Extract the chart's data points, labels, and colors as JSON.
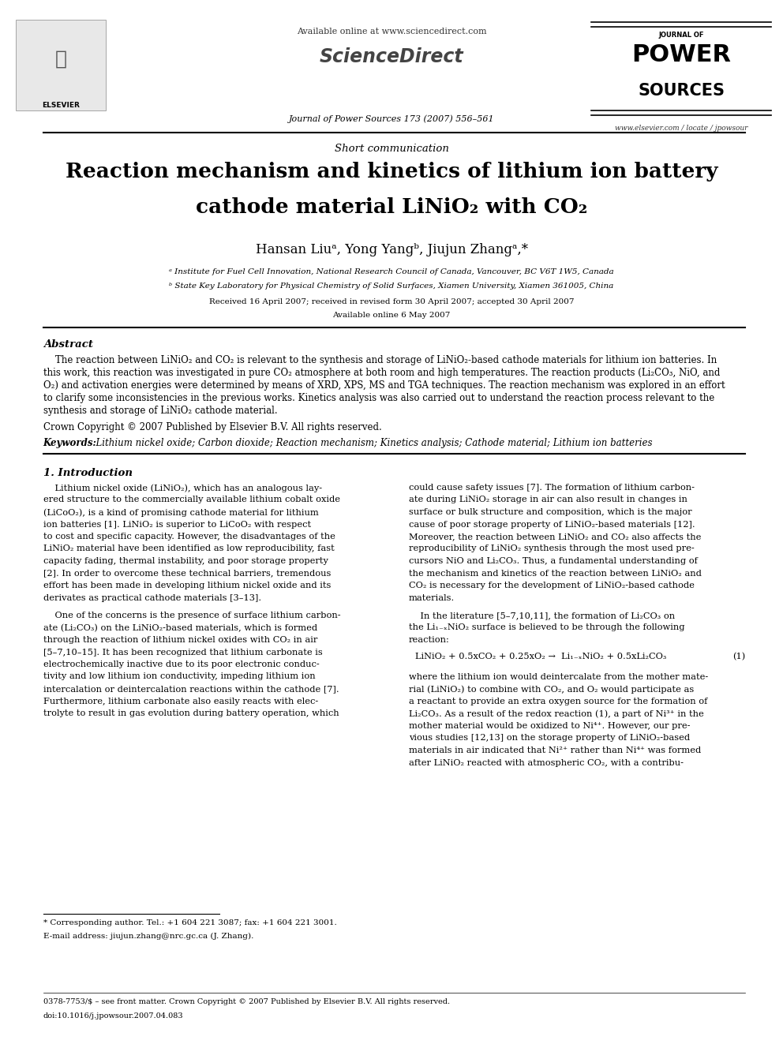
{
  "bg_color": "#ffffff",
  "page_width": 9.92,
  "page_height": 13.23,
  "dpi": 100,
  "header": {
    "available_online": "Available online at www.sciencedirect.com",
    "journal_line": "Journal of Power Sources 173 (2007) 556–561",
    "website": "www.elsevier.com / locate / jpowsour",
    "journal_name_line1": "JOURNAL OF",
    "journal_name_line2": "POWER",
    "journal_name_line3": "SOURCES"
  },
  "article_type": "Short communication",
  "title_line1": "Reaction mechanism and kinetics of lithium ion battery",
  "title_line2": "cathode material LiNiO₂ with CO₂",
  "authors_line": "Hansan Liuᵃ, Yong Yangᵇ, Jiujun Zhangᵃ,*",
  "affil_a": "ᵃ Institute for Fuel Cell Innovation, National Research Council of Canada, Vancouver, BC V6T 1W5, Canada",
  "affil_b": "ᵇ State Key Laboratory for Physical Chemistry of Solid Surfaces, Xiamen University, Xiamen 361005, China",
  "received": "Received 16 April 2007; received in revised form 30 April 2007; accepted 30 April 2007",
  "available": "Available online 6 May 2007",
  "abstract_title": "Abstract",
  "copyright": "Crown Copyright © 2007 Published by Elsevier B.V. All rights reserved.",
  "keywords_label": "Keywords:",
  "keywords_text": "  Lithium nickel oxide; Carbon dioxide; Reaction mechanism; Kinetics analysis; Cathode material; Lithium ion batteries",
  "section1_title": "1. Introduction",
  "footnote_line1": "* Corresponding author. Tel.: +1 604 221 3087; fax: +1 604 221 3001.",
  "footnote_line2": "E-mail address: jiujun.zhang@nrc.gc.ca (J. Zhang).",
  "footer_line1": "0378-7753/$ – see front matter. Crown Copyright © 2007 Published by Elsevier B.V. All rights reserved.",
  "footer_line2": "doi:10.1016/j.jpowsour.2007.04.083",
  "lm": 0.055,
  "rm": 0.952,
  "col1_l": 0.055,
  "col1_r": 0.478,
  "col2_l": 0.522,
  "col2_r": 0.952
}
